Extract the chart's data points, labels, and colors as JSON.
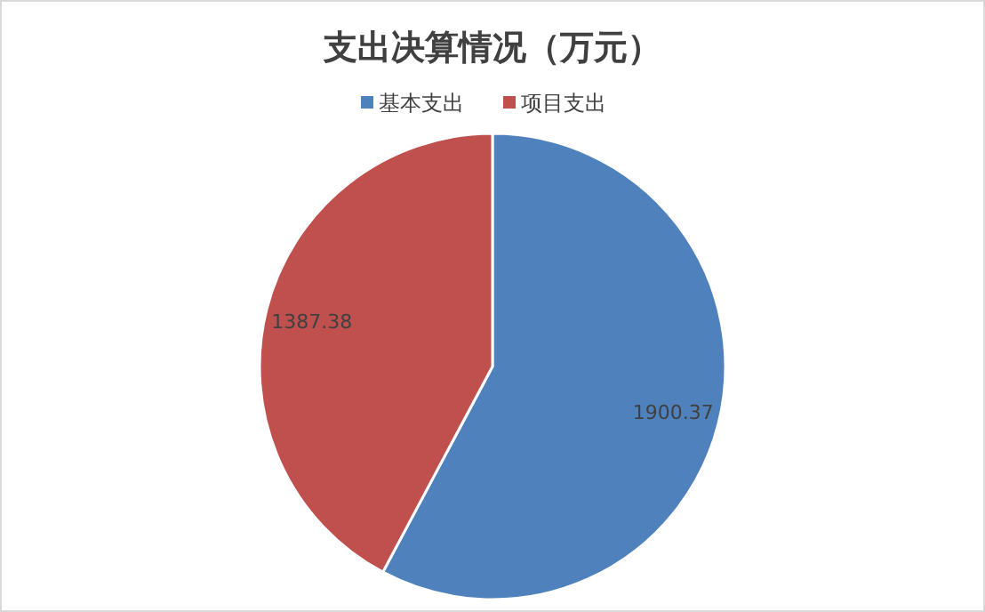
{
  "chart_data": {
    "type": "pie",
    "title": "支出决算情况（万元）",
    "categories": [
      "基本支出",
      "项目支出"
    ],
    "values": [
      1900.37,
      1387.38
    ],
    "colors": [
      "#4f81bd",
      "#c0504d"
    ],
    "data_labels": true,
    "legend": "top"
  }
}
